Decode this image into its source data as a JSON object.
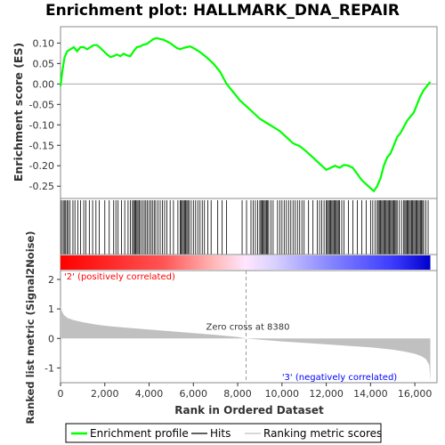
{
  "chart_data": {
    "type": "line",
    "title": "Enrichment plot: HALLMARK_DNA_REPAIR",
    "panels": {
      "enrichment": {
        "ylabel": "Enrichment score (ES)",
        "ylim": [
          -0.28,
          0.14
        ],
        "yticks": [
          0.1,
          0.05,
          0.0,
          -0.05,
          -0.1,
          -0.15,
          -0.2,
          -0.25
        ],
        "ytick_labels": [
          "0.10",
          "0.05",
          "0.00",
          "-0.05",
          "-0.10",
          "-0.15",
          "-0.20",
          "-0.25"
        ],
        "series": [
          {
            "name": "Enrichment profile",
            "color": "#00ff00",
            "x": [
              0,
              80,
              180,
              300,
              450,
              600,
              750,
              900,
              1050,
              1200,
              1350,
              1500,
              1650,
              1800,
              1950,
              2100,
              2250,
              2400,
              2550,
              2700,
              2850,
              3000,
              3150,
              3300,
              3450,
              3600,
              3750,
              3900,
              4050,
              4200,
              4350,
              4500,
              4650,
              4800,
              4950,
              5100,
              5250,
              5400,
              5550,
              5700,
              5850,
              6000,
              6300,
              6600,
              6900,
              7200,
              7500,
              7800,
              8100,
              8400,
              8700,
              9000,
              9300,
              9600,
              9900,
              10200,
              10500,
              10800,
              11100,
              11400,
              11700,
              12000,
              12200,
              12400,
              12600,
              12800,
              13000,
              13200,
              13400,
              13600,
              13800,
              14000,
              14150,
              14300,
              14450,
              14600,
              14750,
              14900,
              15050,
              15200,
              15350,
              15500,
              15650,
              15800,
              15950,
              16100,
              16250,
              16400,
              16550,
              16700
            ],
            "values": [
              -0.005,
              0.03,
              0.065,
              0.08,
              0.085,
              0.09,
              0.08,
              0.09,
              0.09,
              0.085,
              0.09,
              0.095,
              0.095,
              0.088,
              0.08,
              0.072,
              0.066,
              0.068,
              0.072,
              0.068,
              0.074,
              0.07,
              0.068,
              0.08,
              0.09,
              0.092,
              0.096,
              0.098,
              0.104,
              0.11,
              0.112,
              0.11,
              0.108,
              0.104,
              0.1,
              0.094,
              0.088,
              0.085,
              0.088,
              0.09,
              0.092,
              0.088,
              0.078,
              0.065,
              0.05,
              0.03,
              0.0,
              -0.02,
              -0.04,
              -0.055,
              -0.07,
              -0.085,
              -0.095,
              -0.105,
              -0.115,
              -0.13,
              -0.145,
              -0.152,
              -0.165,
              -0.18,
              -0.195,
              -0.21,
              -0.205,
              -0.2,
              -0.205,
              -0.198,
              -0.2,
              -0.205,
              -0.22,
              -0.235,
              -0.245,
              -0.255,
              -0.262,
              -0.25,
              -0.23,
              -0.2,
              -0.18,
              -0.17,
              -0.15,
              -0.13,
              -0.12,
              -0.105,
              -0.09,
              -0.08,
              -0.07,
              -0.05,
              -0.03,
              -0.015,
              -0.005,
              0.005
            ]
          }
        ]
      },
      "hits": {
        "positions": [
          40,
          120,
          170,
          230,
          290,
          350,
          430,
          560,
          650,
          780,
          900,
          1050,
          1150,
          1300,
          1450,
          1600,
          1750,
          2000,
          2200,
          2400,
          2500,
          2600,
          2750,
          2900,
          3050,
          3150,
          3250,
          3300,
          3350,
          3400,
          3450,
          3500,
          3560,
          3620,
          3700,
          3780,
          3850,
          3920,
          4000,
          4080,
          4150,
          4230,
          4300,
          4400,
          4500,
          4600,
          4700,
          4800,
          4950,
          5100,
          5300,
          5400,
          5450,
          5500,
          5550,
          5600,
          5650,
          5700,
          5750,
          5800,
          5900,
          6000,
          6100,
          6200,
          6300,
          6400,
          6500,
          6650,
          6800,
          7100,
          7300,
          7500,
          8200,
          8400,
          8600,
          8700,
          8800,
          8900,
          9000,
          9050,
          9100,
          9150,
          9200,
          9250,
          9300,
          9350,
          9400,
          9500,
          9600,
          9800,
          9900,
          10000,
          10100,
          10200,
          10300,
          10400,
          10500,
          10600,
          10700,
          10800,
          10900,
          11000,
          11200,
          11400,
          11600,
          11700,
          11800,
          11900,
          12000,
          12050,
          12100,
          12150,
          12200,
          12250,
          12300,
          12350,
          12400,
          12450,
          12500,
          12550,
          12600,
          12700,
          12800,
          13000,
          13200,
          13400,
          13600,
          13800,
          14000,
          14100,
          14200,
          14300,
          14350,
          14400,
          14450,
          14500,
          14550,
          14600,
          14650,
          14700,
          14750,
          14800,
          14850,
          14900,
          14950,
          15000,
          15050,
          15100,
          15150,
          15200,
          15300,
          15400,
          15500,
          15550,
          15600,
          15650,
          15700,
          15750,
          15800,
          15850,
          15900,
          15950,
          16000,
          16050,
          16100,
          16150,
          16200,
          16250,
          16300,
          16350,
          16400,
          16500,
          16600
        ]
      },
      "ranked_metric": {
        "ylabel": "Ranked list metric (Signal2Noise)",
        "xlabel": "Rank in Ordered Dataset",
        "xlim": [
          0,
          17000
        ],
        "ylim": [
          -1.5,
          2.3
        ],
        "xticks": [
          0,
          2000,
          4000,
          6000,
          8000,
          10000,
          12000,
          14000,
          16000
        ],
        "xtick_labels": [
          "0",
          "2,000",
          "4,000",
          "6,000",
          "8,000",
          "10,000",
          "12,000",
          "14,000",
          "16,000"
        ],
        "yticks": [
          2,
          1,
          0,
          -1
        ],
        "ytick_labels": [
          "2",
          "1",
          "0",
          "-1"
        ],
        "x": [
          0,
          50,
          150,
          300,
          600,
          1000,
          1500,
          2000,
          3000,
          4000,
          5000,
          6000,
          7000,
          8000,
          8380,
          9000,
          10000,
          11000,
          12000,
          13000,
          14000,
          15000,
          15500,
          16000,
          16300,
          16500,
          16650,
          16700
        ],
        "values": [
          1.1,
          0.95,
          0.8,
          0.7,
          0.62,
          0.55,
          0.48,
          0.43,
          0.36,
          0.3,
          0.24,
          0.18,
          0.12,
          0.05,
          0.0,
          -0.04,
          -0.1,
          -0.15,
          -0.2,
          -0.25,
          -0.3,
          -0.38,
          -0.44,
          -0.52,
          -0.6,
          -0.7,
          -0.9,
          -1.45
        ]
      }
    },
    "annotations": {
      "positive_label": "'2' (positively correlated)",
      "negative_label": "'3' (negatively correlated)",
      "zero_cross_label": "Zero cross at 8380",
      "zero_cross_rank": 8380
    },
    "legend": {
      "placement": "bottom",
      "items": [
        {
          "label": "Enrichment profile",
          "color": "#00ff00",
          "style": "line"
        },
        {
          "label": "Hits",
          "color": "#000000",
          "style": "line"
        },
        {
          "label": "Ranking metric scores",
          "color": "#c0c0c0",
          "style": "line"
        }
      ]
    },
    "colors": {
      "enrichment_line": "#00ff00",
      "metric_fill": "#c0c0c0",
      "positive_text": "#ff0000",
      "negative_text": "#0000ff",
      "bar_red": "#ff0000",
      "bar_blue": "#0000ff"
    }
  }
}
